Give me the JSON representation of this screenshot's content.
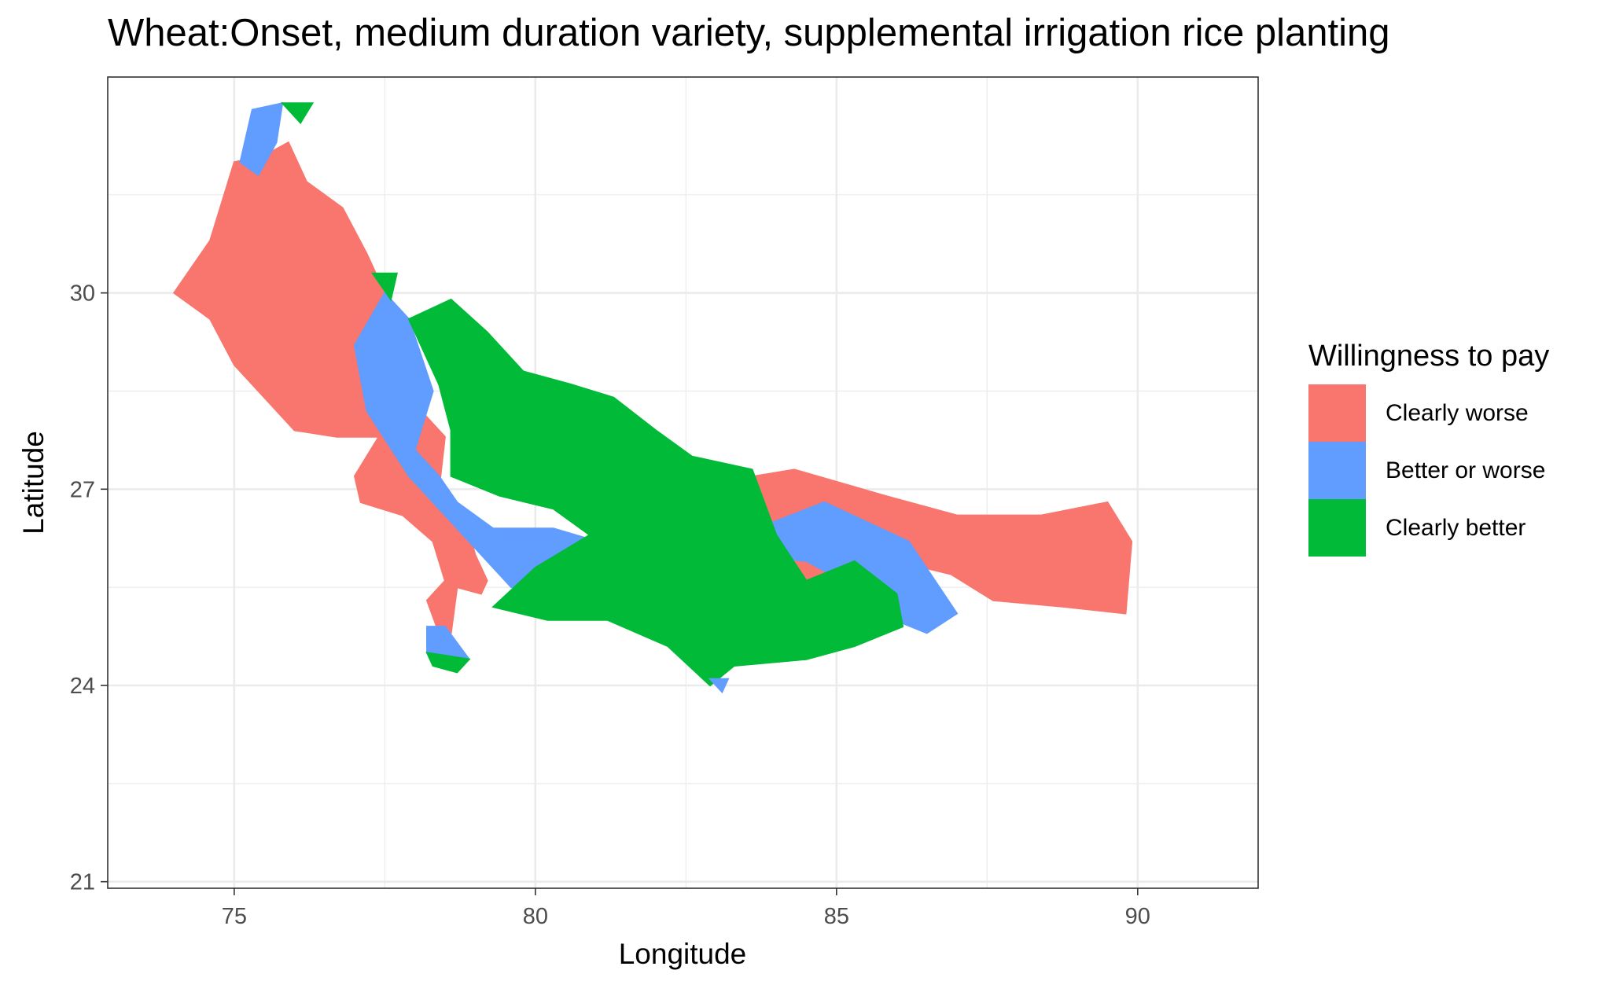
{
  "chart_data": {
    "type": "heatmap",
    "title": "Wheat:Onset, medium duration variety, supplemental irrigation rice planting",
    "xlabel": "Longitude",
    "ylabel": "Latitude",
    "xlim": [
      72.9,
      92.0
    ],
    "ylim": [
      20.9,
      33.3
    ],
    "x_ticks": [
      75,
      80,
      85,
      90
    ],
    "y_ticks": [
      21,
      24,
      27,
      30
    ],
    "x_minor_gridlines": [
      77.5,
      82.5,
      87.5
    ],
    "y_minor_gridlines": [
      22.5,
      25.5,
      28.5,
      31.5
    ],
    "grid": true,
    "legend": {
      "title": "Willingness to pay",
      "position": "right",
      "entries": [
        {
          "label": "Clearly worse",
          "color": "#F8766D"
        },
        {
          "label": "Better or worse",
          "color": "#619CFF"
        },
        {
          "label": "Clearly better",
          "color": "#00BA38"
        }
      ]
    },
    "regions": [
      {
        "category": "Clearly worse",
        "color": "#F8766D",
        "polygon": [
          [
            74.0,
            30.0
          ],
          [
            74.6,
            30.8
          ],
          [
            75.0,
            32.0
          ],
          [
            75.5,
            32.1
          ],
          [
            75.9,
            32.3
          ],
          [
            76.2,
            31.7
          ],
          [
            76.8,
            31.3
          ],
          [
            77.2,
            30.6
          ],
          [
            77.6,
            29.8
          ],
          [
            77.2,
            29.4
          ],
          [
            77.6,
            28.5
          ],
          [
            78.1,
            28.2
          ],
          [
            78.5,
            27.8
          ],
          [
            78.4,
            27.0
          ],
          [
            78.8,
            26.7
          ],
          [
            79.0,
            26.0
          ],
          [
            79.2,
            25.6
          ],
          [
            79.1,
            25.4
          ],
          [
            78.7,
            25.5
          ],
          [
            78.6,
            24.8
          ],
          [
            78.4,
            24.8
          ],
          [
            78.2,
            25.3
          ],
          [
            78.5,
            25.6
          ],
          [
            78.3,
            26.2
          ],
          [
            77.8,
            26.6
          ],
          [
            77.1,
            26.8
          ],
          [
            77.0,
            27.2
          ],
          [
            77.4,
            27.8
          ],
          [
            76.7,
            27.8
          ],
          [
            76.0,
            27.9
          ],
          [
            75.0,
            28.9
          ],
          [
            74.6,
            29.6
          ]
        ]
      },
      {
        "category": "Clearly worse",
        "color": "#F8766D",
        "polygon": [
          [
            83.0,
            27.1
          ],
          [
            84.3,
            27.3
          ],
          [
            85.8,
            26.9
          ],
          [
            87.0,
            26.6
          ],
          [
            88.4,
            26.6
          ],
          [
            89.5,
            26.8
          ],
          [
            89.9,
            26.2
          ],
          [
            89.8,
            25.1
          ],
          [
            88.8,
            25.2
          ],
          [
            87.6,
            25.3
          ],
          [
            86.9,
            25.7
          ],
          [
            86.0,
            25.9
          ],
          [
            84.8,
            25.7
          ],
          [
            84.0,
            25.5
          ],
          [
            83.8,
            26.0
          ],
          [
            83.4,
            26.5
          ]
        ]
      },
      {
        "category": "Better or worse",
        "color": "#619CFF",
        "polygon": [
          [
            77.5,
            30.0
          ],
          [
            77.9,
            29.6
          ],
          [
            78.3,
            28.5
          ],
          [
            78.0,
            27.6
          ],
          [
            78.4,
            27.2
          ],
          [
            78.7,
            26.8
          ],
          [
            79.3,
            26.4
          ],
          [
            80.3,
            26.4
          ],
          [
            81.4,
            26.1
          ],
          [
            82.0,
            25.9
          ],
          [
            82.6,
            26.0
          ],
          [
            83.4,
            26.3
          ],
          [
            84.8,
            26.8
          ],
          [
            86.2,
            26.2
          ],
          [
            87.0,
            25.1
          ],
          [
            86.5,
            24.8
          ],
          [
            85.7,
            25.1
          ],
          [
            85.1,
            25.6
          ],
          [
            84.5,
            25.9
          ],
          [
            83.4,
            26.0
          ],
          [
            82.2,
            25.4
          ],
          [
            81.0,
            25.6
          ],
          [
            79.6,
            25.5
          ],
          [
            79.0,
            26.1
          ],
          [
            78.6,
            26.5
          ],
          [
            77.9,
            27.2
          ],
          [
            77.2,
            28.2
          ],
          [
            77.0,
            29.2
          ]
        ]
      },
      {
        "category": "Better or worse",
        "color": "#619CFF",
        "polygon": [
          [
            75.1,
            32.0
          ],
          [
            75.3,
            32.8
          ],
          [
            75.8,
            32.9
          ],
          [
            75.7,
            32.3
          ],
          [
            75.4,
            31.8
          ]
        ]
      },
      {
        "category": "Better or worse",
        "color": "#619CFF",
        "polygon": [
          [
            78.2,
            24.9
          ],
          [
            78.5,
            24.9
          ],
          [
            78.9,
            24.4
          ],
          [
            78.6,
            24.3
          ],
          [
            78.2,
            24.5
          ]
        ]
      },
      {
        "category": "Clearly better",
        "color": "#00BA38",
        "polygon": [
          [
            77.9,
            29.6
          ],
          [
            78.6,
            29.9
          ],
          [
            79.2,
            29.4
          ],
          [
            79.8,
            28.8
          ],
          [
            80.6,
            28.6
          ],
          [
            81.3,
            28.4
          ],
          [
            82.0,
            27.9
          ],
          [
            82.6,
            27.5
          ],
          [
            83.6,
            27.3
          ],
          [
            84.0,
            26.3
          ],
          [
            84.5,
            25.6
          ],
          [
            85.3,
            25.9
          ],
          [
            86.0,
            25.4
          ],
          [
            86.1,
            24.9
          ],
          [
            85.3,
            24.6
          ],
          [
            84.5,
            24.4
          ],
          [
            83.3,
            24.3
          ],
          [
            82.9,
            24.0
          ],
          [
            82.2,
            24.6
          ],
          [
            81.2,
            25.0
          ],
          [
            80.2,
            25.0
          ],
          [
            79.3,
            25.2
          ],
          [
            80.0,
            25.8
          ],
          [
            80.9,
            26.3
          ],
          [
            80.3,
            26.7
          ],
          [
            79.4,
            26.9
          ],
          [
            78.6,
            27.2
          ],
          [
            78.6,
            27.9
          ],
          [
            78.4,
            28.6
          ]
        ]
      },
      {
        "category": "Clearly better",
        "color": "#00BA38",
        "polygon": [
          [
            75.8,
            32.9
          ],
          [
            76.3,
            32.9
          ],
          [
            76.1,
            32.6
          ]
        ]
      },
      {
        "category": "Clearly better",
        "color": "#00BA38",
        "polygon": [
          [
            77.3,
            30.3
          ],
          [
            77.7,
            30.3
          ],
          [
            77.6,
            29.9
          ]
        ]
      },
      {
        "category": "Clearly better",
        "color": "#00BA38",
        "polygon": [
          [
            78.2,
            24.5
          ],
          [
            78.9,
            24.4
          ],
          [
            78.7,
            24.2
          ],
          [
            78.3,
            24.3
          ]
        ]
      },
      {
        "category": "Better or worse",
        "color": "#619CFF",
        "polygon": [
          [
            82.9,
            24.1
          ],
          [
            83.2,
            24.1
          ],
          [
            83.1,
            23.9
          ]
        ]
      }
    ]
  }
}
